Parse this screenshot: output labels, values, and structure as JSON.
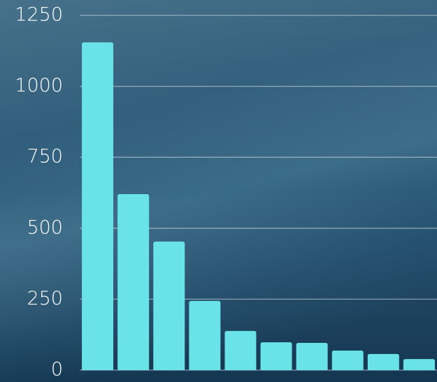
{
  "chart_data": {
    "type": "bar",
    "categories": [
      null,
      null,
      null,
      null,
      null,
      null,
      null,
      null,
      null,
      null
    ],
    "values": [
      1155,
      620,
      453,
      244,
      138,
      98,
      96,
      69,
      57,
      39
    ],
    "color": "#6ae3e8",
    "ylim": [
      0,
      1250
    ],
    "yticks": [
      0,
      250,
      500,
      750,
      1000,
      1250
    ],
    "grid": true
  }
}
